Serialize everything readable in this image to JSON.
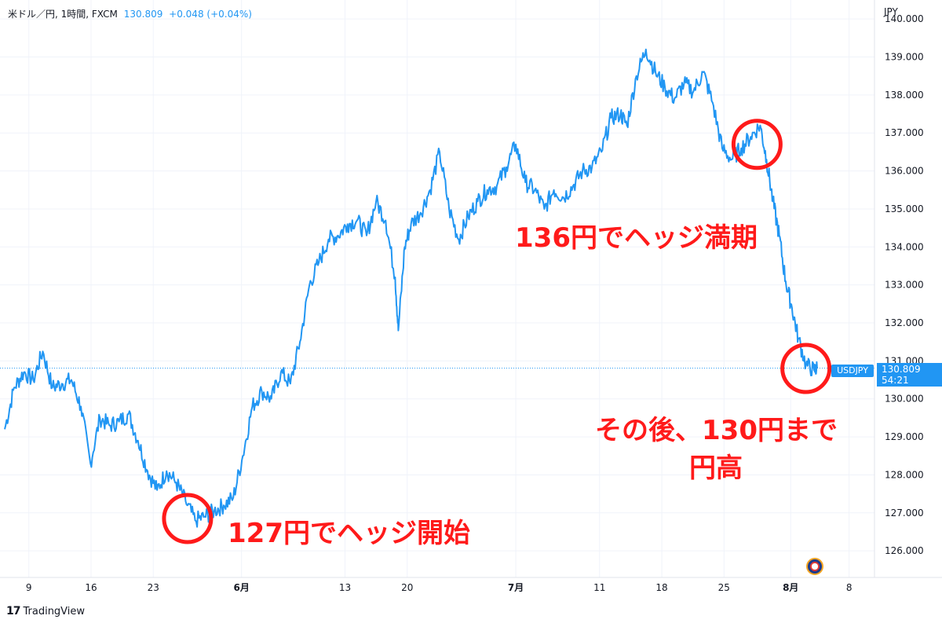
{
  "legend": {
    "symbol": "米ドル／円, 1時間, FXCM",
    "price": "130.809",
    "change": "+0.048 (+0.04%)"
  },
  "currency": "JPY",
  "price_badge": {
    "symbol": "USDJPY",
    "price": "130.809",
    "countdown": "54:21"
  },
  "branding": {
    "logo_text": "TradingView",
    "flag_icon": "us-flag-icon"
  },
  "annotations": {
    "start": "127円でヘッジ開始",
    "end": "136円でヘッジ満期",
    "after_line1": "その後、130円まで",
    "after_line2": "円高"
  },
  "colors": {
    "line": "#2196f3",
    "annotation": "#ff1a1a",
    "grid": "#f0f3fa"
  },
  "chart_data": {
    "type": "line",
    "series": [
      {
        "name": "USDJPY",
        "points": [
          [
            0,
            129.2
          ],
          [
            1.5,
            130.3
          ],
          [
            3,
            130.7
          ],
          [
            4.5,
            130.5
          ],
          [
            6,
            131.25
          ],
          [
            7.5,
            130.3
          ],
          [
            9,
            130.4
          ],
          [
            10.5,
            130.5
          ],
          [
            12,
            129.8
          ],
          [
            13.5,
            128.3
          ],
          [
            15,
            129.5
          ],
          [
            16.5,
            129.3
          ],
          [
            18,
            129.4
          ],
          [
            19.5,
            129.6
          ],
          [
            21,
            128.9
          ],
          [
            22.5,
            128.1
          ],
          [
            24,
            127.6
          ],
          [
            25.5,
            128.1
          ],
          [
            27,
            127.8
          ],
          [
            28.5,
            127.3
          ],
          [
            30,
            126.8
          ],
          [
            31.5,
            126.9
          ],
          [
            33,
            127.05
          ],
          [
            34.5,
            127.2
          ],
          [
            36,
            127.4
          ],
          [
            37.5,
            128.5
          ],
          [
            39,
            129.8
          ],
          [
            40.5,
            130.2
          ],
          [
            42,
            130.0
          ],
          [
            43.5,
            130.7
          ],
          [
            45,
            130.4
          ],
          [
            46.5,
            131.5
          ],
          [
            48,
            133.0
          ],
          [
            49.5,
            133.6
          ],
          [
            51,
            134.2
          ],
          [
            52.5,
            134.3
          ],
          [
            54,
            134.6
          ],
          [
            55.5,
            134.7
          ],
          [
            57,
            134.3
          ],
          [
            58.5,
            135.2
          ],
          [
            60,
            134.7
          ],
          [
            61.5,
            133.2
          ],
          [
            62,
            131.8
          ],
          [
            63,
            134.0
          ],
          [
            64,
            134.6
          ],
          [
            65.5,
            134.9
          ],
          [
            67,
            135.5
          ],
          [
            68.5,
            136.5
          ],
          [
            70,
            135.0
          ],
          [
            71.5,
            134.2
          ],
          [
            73,
            134.8
          ],
          [
            74.5,
            135.2
          ],
          [
            76,
            135.5
          ],
          [
            77.5,
            135.6
          ],
          [
            79,
            136.1
          ],
          [
            80.5,
            136.7
          ],
          [
            82,
            135.7
          ],
          [
            83.5,
            135.5
          ],
          [
            85,
            135.0
          ],
          [
            86.5,
            135.5
          ],
          [
            88,
            135.3
          ],
          [
            89.5,
            135.6
          ],
          [
            91,
            136.0
          ],
          [
            92.5,
            136.1
          ],
          [
            94,
            136.5
          ],
          [
            95.5,
            137.4
          ],
          [
            97,
            137.5
          ],
          [
            98,
            137.2
          ],
          [
            99.5,
            138.5
          ],
          [
            101,
            139.2
          ],
          [
            102.5,
            138.6
          ],
          [
            104,
            138.2
          ],
          [
            105.5,
            137.9
          ],
          [
            107,
            138.3
          ],
          [
            108.5,
            138.1
          ],
          [
            110,
            138.6
          ],
          [
            111.5,
            137.8
          ],
          [
            113,
            136.6
          ],
          [
            114.5,
            136.3
          ],
          [
            116,
            136.6
          ],
          [
            117.5,
            136.9
          ],
          [
            119,
            137.2
          ],
          [
            120,
            136.3
          ],
          [
            121,
            135.2
          ],
          [
            122,
            134.3
          ],
          [
            123,
            133.1
          ],
          [
            124,
            132.4
          ],
          [
            125,
            131.6
          ],
          [
            126.2,
            130.9
          ],
          [
            127.5,
            130.75
          ],
          [
            128,
            130.81
          ]
        ]
      }
    ],
    "x_ticks": [
      {
        "x": 3.8,
        "label": "9"
      },
      {
        "x": 13.6,
        "label": "16"
      },
      {
        "x": 23.4,
        "label": "23"
      },
      {
        "x": 37.3,
        "label": "6月"
      },
      {
        "x": 53.6,
        "label": "13"
      },
      {
        "x": 63.4,
        "label": "20"
      },
      {
        "x": 80.5,
        "label": "7月"
      },
      {
        "x": 93.7,
        "label": "11"
      },
      {
        "x": 103.5,
        "label": "18"
      },
      {
        "x": 113.3,
        "label": "25"
      },
      {
        "x": 123.8,
        "label": "8月"
      },
      {
        "x": 133,
        "label": "8"
      }
    ],
    "xlim": [
      0,
      137
    ],
    "ylim": [
      125.3,
      140.5
    ],
    "y_ticks": [
      126,
      127,
      128,
      129,
      130,
      131,
      132,
      133,
      134,
      135,
      136,
      137,
      138,
      139,
      140
    ],
    "y_tick_labels": [
      "126.000",
      "127.000",
      "128.000",
      "129.000",
      "130.000",
      "131.000",
      "132.000",
      "133.000",
      "134.000",
      "135.000",
      "136.000",
      "137.000",
      "138.000",
      "139.000",
      "140.000"
    ],
    "last_price_line": 130.809,
    "marked_points": [
      {
        "x": 28.8,
        "y": 126.85
      },
      {
        "x": 118.5,
        "y": 136.7
      },
      {
        "x": 126.2,
        "y": 130.8
      }
    ],
    "grid": true
  }
}
